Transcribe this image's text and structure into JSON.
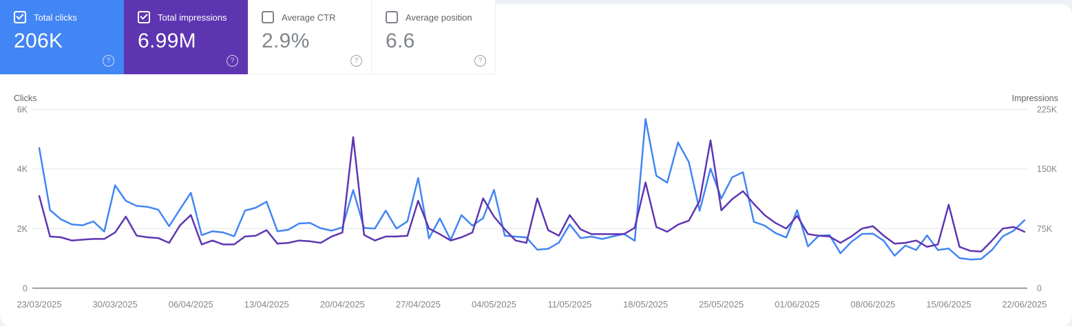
{
  "icons": {
    "help_glyph": "?"
  },
  "cards": [
    {
      "label": "Total clicks",
      "value": "206K",
      "checked": true,
      "color": "#4285f4"
    },
    {
      "label": "Total impressions",
      "value": "6.99M",
      "checked": true,
      "color": "#5e35b1"
    },
    {
      "label": "Average CTR",
      "value": "2.9%",
      "checked": false
    },
    {
      "label": "Average position",
      "value": "6.6",
      "checked": false
    }
  ],
  "chart_data": {
    "type": "line",
    "x_unit": "day",
    "num_points": 92,
    "grid": true,
    "legend_position": "none",
    "x_tick_labels": [
      "23/03/2025",
      "30/03/2025",
      "06/04/2025",
      "13/04/2025",
      "20/04/2025",
      "27/04/2025",
      "04/05/2025",
      "11/05/2025",
      "18/05/2025",
      "25/05/2025",
      "01/06/2025",
      "08/06/2025",
      "15/06/2025",
      "22/06/2025"
    ],
    "x_tick_indices": [
      0,
      7,
      14,
      21,
      28,
      35,
      42,
      49,
      56,
      63,
      70,
      77,
      84,
      91
    ],
    "left_axis": {
      "title": "Clicks",
      "max": 6000,
      "ticks": [
        {
          "label": "0",
          "value": 0
        },
        {
          "label": "2K",
          "value": 2000
        },
        {
          "label": "4K",
          "value": 4000
        },
        {
          "label": "6K",
          "value": 6000
        }
      ]
    },
    "right_axis": {
      "title": "Impressions",
      "max": 225000,
      "ticks": [
        {
          "label": "0",
          "value": 0
        },
        {
          "label": "75K",
          "value": 75000
        },
        {
          "label": "150K",
          "value": 150000
        },
        {
          "label": "225K",
          "value": 225000
        }
      ]
    },
    "series": [
      {
        "name": "Clicks",
        "axis": "left",
        "color": "#4285f4",
        "values": [
          4700,
          2620,
          2310,
          2140,
          2110,
          2240,
          1900,
          3450,
          2930,
          2760,
          2730,
          2630,
          2080,
          2650,
          3200,
          1780,
          1910,
          1870,
          1740,
          2600,
          2700,
          2900,
          1910,
          1960,
          2170,
          2190,
          2010,
          1930,
          2040,
          3290,
          2020,
          2000,
          2600,
          2000,
          2240,
          3700,
          1670,
          2340,
          1620,
          2450,
          2100,
          2350,
          3300,
          1760,
          1730,
          1700,
          1290,
          1320,
          1530,
          2140,
          1680,
          1730,
          1650,
          1740,
          1820,
          1590,
          5680,
          3770,
          3540,
          4890,
          4230,
          2600,
          4010,
          3010,
          3720,
          3890,
          2230,
          2100,
          1850,
          1700,
          2620,
          1400,
          1760,
          1780,
          1170,
          1550,
          1820,
          1830,
          1590,
          1090,
          1430,
          1280,
          1770,
          1280,
          1330,
          1010,
          960,
          980,
          1280,
          1740,
          1930,
          2280
        ]
      },
      {
        "name": "Impressions",
        "axis": "right",
        "color": "#5e35b1",
        "values": [
          116000,
          65000,
          64000,
          60000,
          61000,
          62000,
          62000,
          70000,
          90000,
          66000,
          64000,
          63000,
          57000,
          79000,
          92000,
          55000,
          60000,
          55000,
          55000,
          65000,
          66000,
          73000,
          56000,
          57000,
          60000,
          59000,
          57000,
          65000,
          70000,
          190000,
          67000,
          60000,
          65000,
          65000,
          66000,
          110000,
          75000,
          68000,
          60000,
          64000,
          70000,
          113000,
          90000,
          74000,
          60000,
          57000,
          113000,
          73000,
          66000,
          92000,
          74000,
          68000,
          68000,
          68000,
          68000,
          76000,
          133000,
          77000,
          71000,
          80000,
          85000,
          110000,
          186000,
          98000,
          112000,
          122000,
          106000,
          92000,
          82000,
          75000,
          91000,
          68000,
          66000,
          65000,
          57000,
          65000,
          75000,
          78000,
          66000,
          56000,
          57000,
          60000,
          52000,
          55000,
          105000,
          52000,
          47000,
          46000,
          60000,
          75000,
          77000,
          71000
        ]
      }
    ]
  }
}
